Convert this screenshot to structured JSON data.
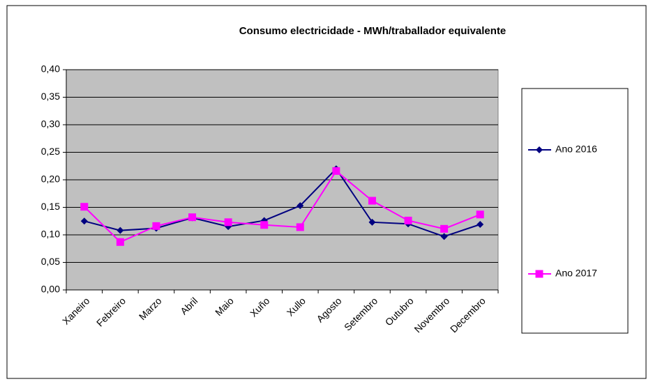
{
  "chart_data": {
    "type": "line",
    "title": "Consumo electricidade - MWh/traballador equivalente",
    "categories": [
      "Xaneiro",
      "Febreiro",
      "Marzo",
      "Abril",
      "Maio",
      "Xuño",
      "Xullo",
      "Agosto",
      "Setembro",
      "Outubro",
      "Novembro",
      "Decembro"
    ],
    "series": [
      {
        "name": "Ano 2016",
        "color": "#000080",
        "marker": "diamond",
        "values": [
          0.125,
          0.108,
          0.112,
          0.131,
          0.115,
          0.126,
          0.153,
          0.22,
          0.123,
          0.12,
          0.097,
          0.119
        ]
      },
      {
        "name": "Ano 2017",
        "color": "#ff00ff",
        "marker": "square",
        "values": [
          0.151,
          0.087,
          0.116,
          0.132,
          0.123,
          0.118,
          0.114,
          0.216,
          0.162,
          0.126,
          0.111,
          0.137
        ]
      }
    ],
    "ylim": [
      0,
      0.4
    ],
    "yticks": [
      {
        "value": 0,
        "label": "0,00"
      },
      {
        "value": 0.05,
        "label": "0,05"
      },
      {
        "value": 0.1,
        "label": "0,10"
      },
      {
        "value": 0.15,
        "label": "0,15"
      },
      {
        "value": 0.2,
        "label": "0,20"
      },
      {
        "value": 0.25,
        "label": "0,25"
      },
      {
        "value": 0.3,
        "label": "0,30"
      },
      {
        "value": 0.35,
        "label": "0,35"
      },
      {
        "value": 0.4,
        "label": "0,40"
      }
    ],
    "grid": true,
    "legend": "right",
    "plot_background": "#c0c0c0"
  }
}
